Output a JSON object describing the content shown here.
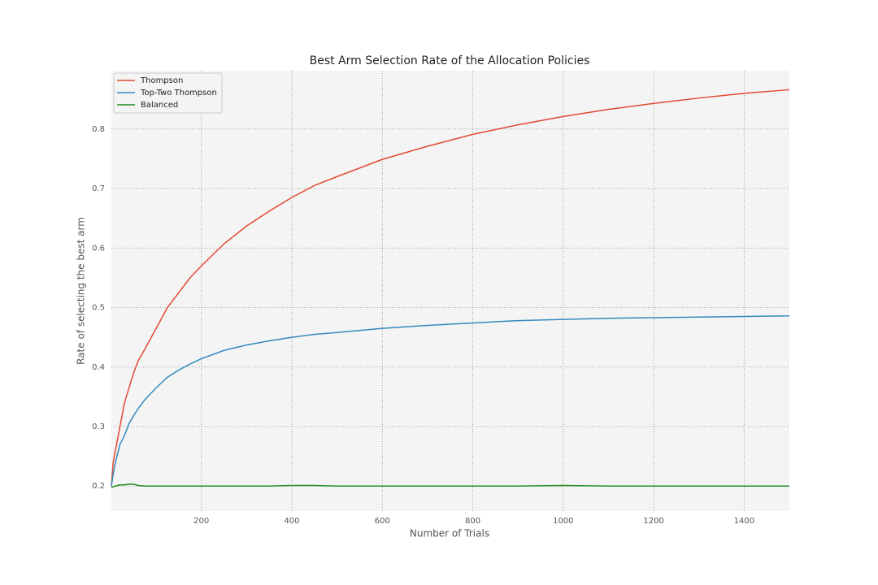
{
  "chart_data": {
    "type": "line",
    "title": "Best Arm Selection Rate of the Allocation Policies",
    "x_label": "Number of Trials",
    "y_label": "Rate of selecting the best arm",
    "x": [
      1,
      5,
      10,
      20,
      30,
      40,
      50,
      60,
      75,
      100,
      125,
      150,
      175,
      200,
      250,
      300,
      350,
      400,
      450,
      500,
      600,
      700,
      800,
      900,
      1000,
      1100,
      1200,
      1300,
      1400,
      1500
    ],
    "series": [
      {
        "name": "Thompson",
        "color": "#e24a33",
        "values": [
          0.2,
          0.24,
          0.26,
          0.3,
          0.34,
          0.365,
          0.39,
          0.41,
          0.43,
          0.465,
          0.5,
          0.525,
          0.55,
          0.57,
          0.607,
          0.637,
          0.662,
          0.685,
          0.705,
          0.72,
          0.749,
          0.771,
          0.791,
          0.807,
          0.821,
          0.833,
          0.843,
          0.852,
          0.86,
          0.866
        ]
      },
      {
        "name": "Top-Two Thompson",
        "color": "#348abd",
        "values": [
          0.2,
          0.22,
          0.24,
          0.27,
          0.285,
          0.305,
          0.318,
          0.33,
          0.345,
          0.365,
          0.383,
          0.395,
          0.405,
          0.414,
          0.428,
          0.437,
          0.444,
          0.45,
          0.455,
          0.458,
          0.465,
          0.47,
          0.474,
          0.478,
          0.48,
          0.482,
          0.483,
          0.484,
          0.485,
          0.486
        ]
      },
      {
        "name": "Balanced",
        "color": "#228b22",
        "values": [
          0.197,
          0.199,
          0.2,
          0.202,
          0.202,
          0.203,
          0.203,
          0.201,
          0.2,
          0.2,
          0.2,
          0.2,
          0.2,
          0.2,
          0.2,
          0.2,
          0.2,
          0.201,
          0.201,
          0.2,
          0.2,
          0.2,
          0.2,
          0.2,
          0.201,
          0.2,
          0.2,
          0.2,
          0.2,
          0.2
        ]
      }
    ],
    "xlim": [
      1,
      1500
    ],
    "ylim": [
      0.158,
      0.898
    ],
    "xticks": [
      200,
      400,
      600,
      800,
      1000,
      1200,
      1400
    ],
    "yticks": [
      0.2,
      0.3,
      0.4,
      0.5,
      0.6,
      0.7,
      0.8
    ],
    "grid": true,
    "legend": "upper left"
  }
}
